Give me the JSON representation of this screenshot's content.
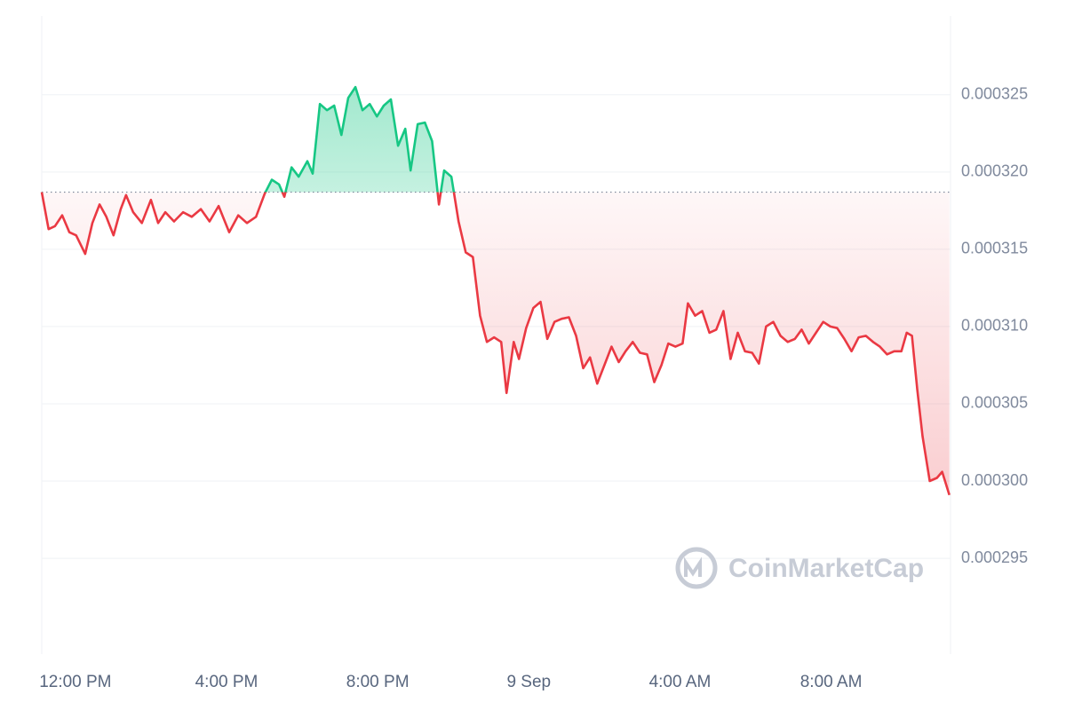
{
  "chart_data": {
    "type": "line",
    "watermark": "CoinMarketCap",
    "colors": {
      "above": "#16c784",
      "below": "#ea3943"
    },
    "reference_line": 0.0003187,
    "xlim": [
      -0.89,
      23.16
    ],
    "xticks": [
      {
        "value": 0,
        "label": "12:00 PM"
      },
      {
        "value": 4,
        "label": "4:00 PM"
      },
      {
        "value": 8,
        "label": "8:00 PM"
      },
      {
        "value": 12,
        "label": "9 Sep"
      },
      {
        "value": 16,
        "label": "4:00 AM"
      },
      {
        "value": 20,
        "label": "8:00 AM"
      }
    ],
    "ylim": [
      0.0002888,
      0.0003301
    ],
    "yticks": [
      0.000295,
      {
        "value": 0.0003,
        "label": "0.000300"
      },
      0.000305,
      {
        "value": 0.00031,
        "label": "0.000310"
      },
      0.000315,
      {
        "value": 0.00032,
        "label": "0.000320"
      },
      0.000325
    ],
    "grid": true,
    "x": [
      -0.89,
      -0.71,
      -0.54,
      -0.35,
      -0.16,
      0.02,
      0.26,
      0.45,
      0.64,
      0.82,
      1.01,
      1.2,
      1.34,
      1.53,
      1.76,
      2.0,
      2.19,
      2.38,
      2.61,
      2.85,
      3.08,
      3.32,
      3.55,
      3.79,
      4.07,
      4.31,
      4.54,
      4.78,
      5.01,
      5.2,
      5.39,
      5.53,
      5.72,
      5.91,
      6.14,
      6.28,
      6.47,
      6.66,
      6.85,
      7.04,
      7.22,
      7.41,
      7.6,
      7.79,
      7.98,
      8.16,
      8.35,
      8.54,
      8.73,
      8.87,
      9.06,
      9.25,
      9.44,
      9.62,
      9.76,
      9.95,
      10.14,
      10.33,
      10.52,
      10.71,
      10.89,
      11.08,
      11.27,
      11.41,
      11.6,
      11.74,
      11.93,
      12.12,
      12.31,
      12.49,
      12.68,
      12.87,
      13.06,
      13.25,
      13.44,
      13.62,
      13.81,
      14.0,
      14.19,
      14.38,
      14.56,
      14.75,
      14.94,
      15.13,
      15.32,
      15.51,
      15.69,
      15.88,
      16.07,
      16.21,
      16.4,
      16.59,
      16.78,
      16.96,
      17.15,
      17.34,
      17.53,
      17.72,
      17.91,
      18.09,
      18.28,
      18.47,
      18.66,
      18.85,
      19.04,
      19.22,
      19.41,
      19.6,
      19.79,
      19.98,
      20.16,
      20.35,
      20.54,
      20.73,
      20.92,
      21.11,
      21.29,
      21.48,
      21.67,
      21.86,
      22.0,
      22.14,
      22.28,
      22.42,
      22.61,
      22.8,
      22.94,
      23.13
    ],
    "values": [
      0.0003187,
      0.0003163,
      0.0003165,
      0.0003172,
      0.0003161,
      0.0003159,
      0.0003147,
      0.0003167,
      0.0003179,
      0.0003171,
      0.0003159,
      0.0003176,
      0.0003185,
      0.0003174,
      0.0003167,
      0.0003182,
      0.0003167,
      0.0003174,
      0.0003168,
      0.0003174,
      0.0003171,
      0.0003176,
      0.0003168,
      0.0003178,
      0.0003161,
      0.0003172,
      0.0003167,
      0.0003171,
      0.0003186,
      0.0003195,
      0.0003192,
      0.0003184,
      0.0003203,
      0.0003197,
      0.0003207,
      0.0003199,
      0.0003244,
      0.000324,
      0.0003243,
      0.0003224,
      0.0003248,
      0.0003255,
      0.000324,
      0.0003244,
      0.0003236,
      0.0003243,
      0.0003247,
      0.0003217,
      0.0003228,
      0.0003201,
      0.0003231,
      0.0003232,
      0.000322,
      0.0003179,
      0.0003201,
      0.0003197,
      0.0003168,
      0.0003148,
      0.0003145,
      0.0003107,
      0.000309,
      0.0003093,
      0.000309,
      0.0003057,
      0.000309,
      0.0003079,
      0.0003099,
      0.0003112,
      0.0003116,
      0.0003092,
      0.0003103,
      0.0003105,
      0.0003106,
      0.0003094,
      0.0003073,
      0.000308,
      0.0003063,
      0.0003075,
      0.0003087,
      0.0003077,
      0.0003084,
      0.000309,
      0.0003083,
      0.0003082,
      0.0003064,
      0.0003075,
      0.0003089,
      0.0003087,
      0.0003089,
      0.0003115,
      0.0003107,
      0.000311,
      0.0003096,
      0.0003098,
      0.000311,
      0.0003079,
      0.0003096,
      0.0003084,
      0.0003083,
      0.0003076,
      0.00031,
      0.0003103,
      0.0003094,
      0.000309,
      0.0003092,
      0.0003098,
      0.0003089,
      0.0003096,
      0.0003103,
      0.00031,
      0.0003099,
      0.0003092,
      0.0003084,
      0.0003093,
      0.0003094,
      0.000309,
      0.0003087,
      0.0003082,
      0.0003084,
      0.0003084,
      0.0003096,
      0.0003094,
      0.0003059,
      0.0003029,
      0.0003,
      0.0003002,
      0.0003006,
      0.0002991
    ]
  }
}
